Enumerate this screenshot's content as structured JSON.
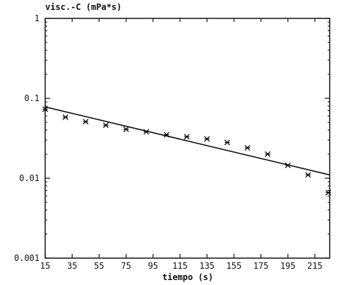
{
  "chart_data": {
    "type": "scatter",
    "title": "",
    "ylabel": "visc.-C (mPa*s)",
    "xlabel": "tiempo (s)",
    "x_scale": "linear",
    "y_scale": "log",
    "xlim": [
      15,
      226
    ],
    "ylim": [
      0.001,
      1
    ],
    "x_ticks": [
      "15",
      "35",
      "55",
      "75",
      "95",
      "115",
      "135",
      "155",
      "175",
      "195",
      "215"
    ],
    "x_tick_values": [
      15,
      35,
      55,
      75,
      95,
      115,
      135,
      155,
      175,
      195,
      215
    ],
    "y_ticks": [
      "1",
      "0.1",
      "0.01",
      "0.001"
    ],
    "y_tick_values": [
      1,
      0.1,
      0.01,
      0.001
    ],
    "grid": false,
    "series": [
      {
        "kind": "points",
        "marker": "asterisk",
        "x": [
          15,
          30,
          45,
          60,
          75,
          90,
          105,
          120,
          135,
          150,
          165,
          180,
          195,
          210,
          225
        ],
        "y": [
          0.073,
          0.058,
          0.051,
          0.046,
          0.041,
          0.038,
          0.035,
          0.033,
          0.031,
          0.028,
          0.024,
          0.02,
          0.0145,
          0.011,
          0.0066
        ]
      },
      {
        "kind": "fit-line",
        "x": [
          15,
          226
        ],
        "y": [
          0.078,
          0.011
        ]
      }
    ]
  }
}
